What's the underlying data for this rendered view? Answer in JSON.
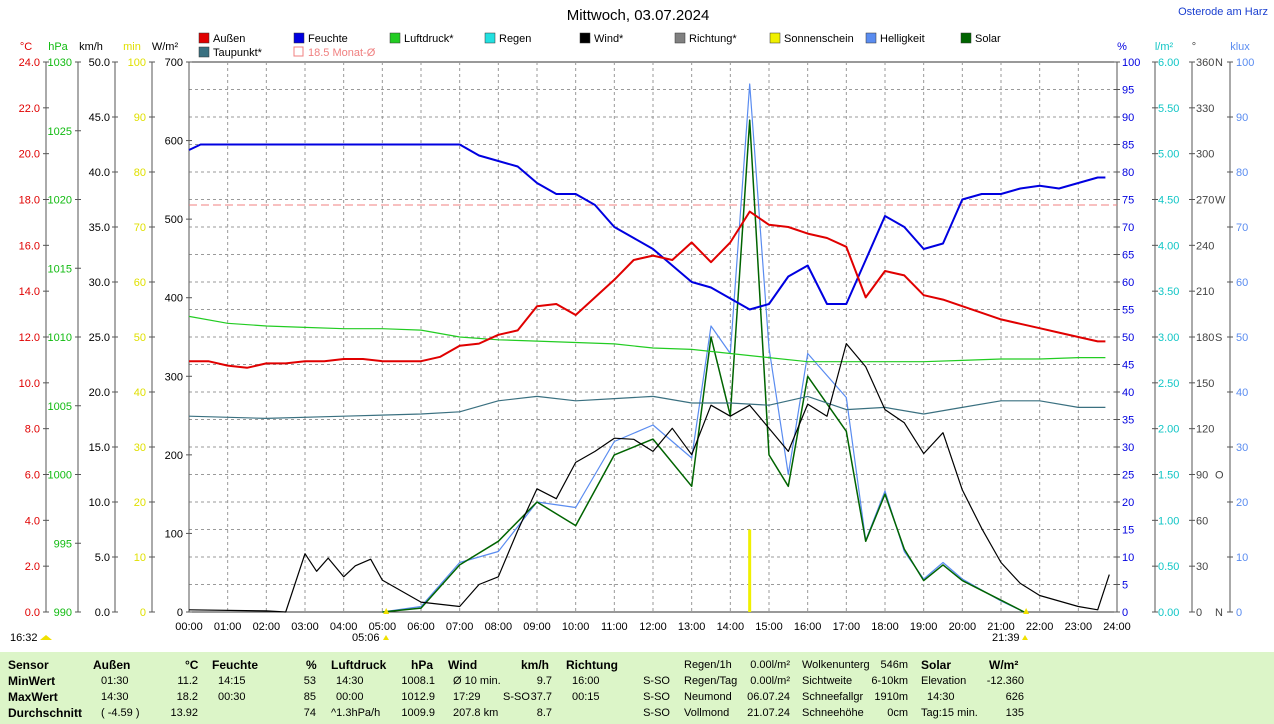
{
  "title": "Mittwoch, 03.07.2024",
  "location": "Osterode am Harz",
  "colors": {
    "aussen": "#e00000",
    "feuchte": "#0000e0",
    "luftdruck": "#22cc22",
    "regen": "#22e0e0",
    "wind": "#000000",
    "richtung": "#808080",
    "sonnenschein": "#f0f000",
    "helligkeit": "#5a8cf0",
    "solar": "#006400",
    "taupunkt": "#3a7080",
    "monatsmittel": "#f08080",
    "stats_bg": "#dcf5c8"
  },
  "legend": [
    "Außen",
    "Feuchte",
    "Luftdruck*",
    "Regen",
    "Wind*",
    "Richtung*",
    "Sonnenschein",
    "Helligkeit",
    "Solar",
    "Taupunkt*",
    "18.5 Monat-Ø"
  ],
  "axes_left": {
    "temp": {
      "unit": "°C",
      "ticks": [
        "0.0",
        "2.0",
        "4.0",
        "6.0",
        "8.0",
        "10.0",
        "12.0",
        "14.0",
        "16.0",
        "18.0",
        "20.0",
        "22.0",
        "24.0"
      ]
    },
    "pressure": {
      "unit": "hPa",
      "ticks": [
        "990",
        "995",
        "1000",
        "1005",
        "1010",
        "1015",
        "1020",
        "1025",
        "1030"
      ]
    },
    "wind": {
      "unit": "km/h",
      "ticks": [
        "0.0",
        "5.0",
        "10.0",
        "15.0",
        "20.0",
        "25.0",
        "30.0",
        "35.0",
        "40.0",
        "45.0",
        "50.0"
      ]
    },
    "sunmin": {
      "unit": "min",
      "ticks": [
        "0",
        "10",
        "20",
        "30",
        "40",
        "50",
        "60",
        "70",
        "80",
        "90",
        "100"
      ]
    },
    "solar": {
      "unit": "W/m²",
      "ticks": [
        "0",
        "100",
        "200",
        "300",
        "400",
        "500",
        "600",
        "700"
      ]
    }
  },
  "axes_right": {
    "humidity": {
      "unit": "%",
      "ticks": [
        "0",
        "5",
        "10",
        "15",
        "20",
        "25",
        "30",
        "35",
        "40",
        "45",
        "50",
        "55",
        "60",
        "65",
        "70",
        "75",
        "80",
        "85",
        "90",
        "95",
        "100"
      ]
    },
    "rain": {
      "unit": "l/m²",
      "ticks": [
        "0.00",
        "0.50",
        "1.00",
        "1.50",
        "2.00",
        "2.50",
        "3.00",
        "3.50",
        "4.00",
        "4.50",
        "5.00",
        "5.50",
        "6.00"
      ]
    },
    "direction": {
      "unit": "°",
      "ticks": [
        "0",
        "30",
        "60",
        "90",
        "120",
        "150",
        "180",
        "210",
        "240",
        "270",
        "300",
        "330",
        "360"
      ],
      "compass": [
        "N",
        "",
        "",
        "O",
        "",
        "",
        "S",
        "",
        "",
        "W",
        "",
        "",
        "N"
      ]
    },
    "lux": {
      "unit": "klux",
      "ticks": [
        "0",
        "10",
        "20",
        "30",
        "40",
        "50",
        "60",
        "70",
        "80",
        "90",
        "100"
      ]
    }
  },
  "x_ticks": [
    "00:00",
    "01:00",
    "02:00",
    "03:00",
    "04:00",
    "05:00",
    "06:00",
    "07:00",
    "08:00",
    "09:00",
    "10:00",
    "11:00",
    "12:00",
    "13:00",
    "14:00",
    "15:00",
    "16:00",
    "17:00",
    "18:00",
    "19:00",
    "20:00",
    "21:00",
    "22:00",
    "23:00",
    "24:00"
  ],
  "annotations": {
    "left_time": "16:32",
    "sunrise": "05:06",
    "sunset": "21:39"
  },
  "chart_data": {
    "type": "line",
    "x_unit": "hours",
    "month_avg_temp": 18.5,
    "series": [
      {
        "name": "Außen",
        "unit": "°C",
        "points": [
          [
            0,
            11.4
          ],
          [
            0.5,
            11.4
          ],
          [
            1,
            11.2
          ],
          [
            1.5,
            11.1
          ],
          [
            2,
            11.3
          ],
          [
            2.5,
            11.3
          ],
          [
            3,
            11.4
          ],
          [
            3.5,
            11.4
          ],
          [
            4,
            11.5
          ],
          [
            4.5,
            11.5
          ],
          [
            5,
            11.4
          ],
          [
            5.5,
            11.4
          ],
          [
            6,
            11.4
          ],
          [
            6.5,
            11.6
          ],
          [
            7,
            12.1
          ],
          [
            7.5,
            12.2
          ],
          [
            8,
            12.6
          ],
          [
            8.5,
            12.8
          ],
          [
            9,
            13.9
          ],
          [
            9.5,
            14
          ],
          [
            10,
            13.5
          ],
          [
            10.5,
            14.3
          ],
          [
            11,
            15.1
          ],
          [
            11.5,
            16
          ],
          [
            12,
            16.2
          ],
          [
            12.5,
            16
          ],
          [
            13,
            16.8
          ],
          [
            13.5,
            15.9
          ],
          [
            14,
            16.8
          ],
          [
            14.5,
            18.2
          ],
          [
            15,
            17.6
          ],
          [
            15.5,
            17.5
          ],
          [
            16,
            17.2
          ],
          [
            16.5,
            17
          ],
          [
            17,
            16.6
          ],
          [
            17.5,
            14.3
          ],
          [
            18,
            15.5
          ],
          [
            18.5,
            15.3
          ],
          [
            19,
            14.4
          ],
          [
            19.5,
            14.2
          ],
          [
            20,
            13.9
          ],
          [
            20.5,
            13.6
          ],
          [
            21,
            13.3
          ],
          [
            21.5,
            13.1
          ],
          [
            22,
            12.9
          ],
          [
            22.5,
            12.7
          ],
          [
            23,
            12.5
          ],
          [
            23.5,
            12.3
          ],
          [
            23.7,
            12.3
          ]
        ]
      },
      {
        "name": "Feuchte",
        "unit": "%",
        "points": [
          [
            0,
            84
          ],
          [
            0.3,
            85
          ],
          [
            1,
            85
          ],
          [
            2,
            85
          ],
          [
            3,
            85
          ],
          [
            4,
            85
          ],
          [
            5,
            85
          ],
          [
            6,
            85
          ],
          [
            7,
            85
          ],
          [
            7.5,
            83
          ],
          [
            8,
            82
          ],
          [
            8.5,
            81
          ],
          [
            9,
            78
          ],
          [
            9.5,
            76
          ],
          [
            10,
            76
          ],
          [
            10.5,
            74
          ],
          [
            11,
            70
          ],
          [
            11.5,
            68
          ],
          [
            12,
            66
          ],
          [
            12.5,
            63
          ],
          [
            13,
            60
          ],
          [
            13.5,
            59
          ],
          [
            14,
            57
          ],
          [
            14.5,
            55
          ],
          [
            15,
            56
          ],
          [
            15.5,
            61
          ],
          [
            16,
            63
          ],
          [
            16.5,
            56
          ],
          [
            17,
            56
          ],
          [
            17.5,
            64
          ],
          [
            18,
            72
          ],
          [
            18.5,
            70
          ],
          [
            19,
            66
          ],
          [
            19.5,
            67
          ],
          [
            20,
            75
          ],
          [
            20.5,
            76
          ],
          [
            21,
            76
          ],
          [
            21.5,
            77
          ],
          [
            22,
            77.5
          ],
          [
            22.5,
            77
          ],
          [
            23,
            78
          ],
          [
            23.5,
            79
          ],
          [
            23.7,
            79
          ]
        ]
      },
      {
        "name": "Luftdruck",
        "unit": "hPa",
        "points": [
          [
            0,
            1011.5
          ],
          [
            1,
            1011.0
          ],
          [
            2,
            1010.8
          ],
          [
            3,
            1010.7
          ],
          [
            4,
            1010.6
          ],
          [
            5,
            1010.6
          ],
          [
            6,
            1010.5
          ],
          [
            7,
            1010.0
          ],
          [
            8,
            1009.8
          ],
          [
            9,
            1009.7
          ],
          [
            10,
            1009.6
          ],
          [
            11,
            1009.5
          ],
          [
            12,
            1009.2
          ],
          [
            13,
            1009.1
          ],
          [
            14,
            1008.8
          ],
          [
            15,
            1008.5
          ],
          [
            16,
            1008.2
          ],
          [
            17,
            1008.2
          ],
          [
            18,
            1008.2
          ],
          [
            19,
            1008.2
          ],
          [
            20,
            1008.3
          ],
          [
            21,
            1008.4
          ],
          [
            22,
            1008.4
          ],
          [
            23,
            1008.5
          ],
          [
            23.7,
            1008.5
          ]
        ]
      },
      {
        "name": "Taupunkt",
        "unit": "°C",
        "points": [
          [
            0,
            8.9
          ],
          [
            2,
            8.8
          ],
          [
            4,
            8.9
          ],
          [
            6,
            9.0
          ],
          [
            7,
            9.1
          ],
          [
            8,
            9.6
          ],
          [
            9,
            9.8
          ],
          [
            10,
            9.6
          ],
          [
            11,
            9.7
          ],
          [
            12,
            9.8
          ],
          [
            13,
            9.5
          ],
          [
            14,
            9.5
          ],
          [
            15,
            9.4
          ],
          [
            16,
            9.8
          ],
          [
            17,
            9.2
          ],
          [
            18,
            9.3
          ],
          [
            19,
            9.0
          ],
          [
            20,
            9.3
          ],
          [
            21,
            9.6
          ],
          [
            22,
            9.6
          ],
          [
            23,
            9.3
          ],
          [
            23.7,
            9.3
          ]
        ]
      },
      {
        "name": "Wind",
        "unit": "km/h",
        "points": [
          [
            0,
            0.2
          ],
          [
            2,
            0.1
          ],
          [
            2.5,
            0
          ],
          [
            3,
            5.3
          ],
          [
            3.3,
            3.7
          ],
          [
            3.6,
            4.9
          ],
          [
            4,
            3.2
          ],
          [
            4.3,
            4.2
          ],
          [
            4.7,
            4.8
          ],
          [
            5,
            2.9
          ],
          [
            6,
            0.9
          ],
          [
            7,
            0.5
          ],
          [
            7.5,
            2.5
          ],
          [
            8,
            3.2
          ],
          [
            8.5,
            7.4
          ],
          [
            9,
            11.2
          ],
          [
            9.5,
            10.3
          ],
          [
            10,
            13.6
          ],
          [
            10.5,
            14.6
          ],
          [
            11,
            15.8
          ],
          [
            11.5,
            15.7
          ],
          [
            12,
            14.6
          ],
          [
            12.5,
            16.7
          ],
          [
            13,
            14.3
          ],
          [
            13.5,
            18.8
          ],
          [
            14,
            17.8
          ],
          [
            14.5,
            18.8
          ],
          [
            15,
            16.7
          ],
          [
            15.5,
            14.6
          ],
          [
            16,
            18.9
          ],
          [
            16.5,
            17.8
          ],
          [
            17,
            24.4
          ],
          [
            17.5,
            22.3
          ],
          [
            18,
            18.4
          ],
          [
            18.5,
            17.2
          ],
          [
            19,
            14.4
          ],
          [
            19.5,
            16.3
          ],
          [
            20,
            11.1
          ],
          [
            20.5,
            7.6
          ],
          [
            21,
            4.5
          ],
          [
            21.5,
            2.6
          ],
          [
            22,
            1.5
          ],
          [
            23,
            0.5
          ],
          [
            23.5,
            0.2
          ],
          [
            23.8,
            3.4
          ]
        ]
      },
      {
        "name": "Solar",
        "unit": "W/m²",
        "points": [
          [
            5,
            0
          ],
          [
            6,
            5
          ],
          [
            7,
            60
          ],
          [
            8,
            90
          ],
          [
            9,
            140
          ],
          [
            10,
            110
          ],
          [
            11,
            200
          ],
          [
            12,
            220
          ],
          [
            13,
            160
          ],
          [
            13.5,
            350
          ],
          [
            14,
            250
          ],
          [
            14.5,
            626
          ],
          [
            15,
            200
          ],
          [
            15.5,
            160
          ],
          [
            16,
            300
          ],
          [
            17,
            230
          ],
          [
            17.5,
            90
          ],
          [
            18,
            150
          ],
          [
            18.5,
            80
          ],
          [
            19,
            40
          ],
          [
            19.5,
            60
          ],
          [
            20,
            40
          ],
          [
            21,
            15
          ],
          [
            21.6,
            0
          ]
        ]
      },
      {
        "name": "Helligkeit",
        "unit": "klux",
        "points": [
          [
            5,
            0
          ],
          [
            6,
            1
          ],
          [
            7,
            9
          ],
          [
            8,
            11
          ],
          [
            9,
            20
          ],
          [
            10,
            19
          ],
          [
            11,
            31
          ],
          [
            12,
            34
          ],
          [
            13,
            28
          ],
          [
            13.5,
            52
          ],
          [
            14,
            47
          ],
          [
            14.5,
            96
          ],
          [
            15,
            48
          ],
          [
            15.5,
            25
          ],
          [
            16,
            47
          ],
          [
            17,
            39
          ],
          [
            17.5,
            13
          ],
          [
            18,
            22
          ],
          [
            18.5,
            11
          ],
          [
            19,
            6
          ],
          [
            19.5,
            9
          ],
          [
            20,
            6
          ],
          [
            21,
            2
          ],
          [
            21.6,
            0
          ]
        ]
      },
      {
        "name": "Sonnenschein",
        "unit": "min",
        "points": [
          [
            14.5,
            15
          ]
        ]
      }
    ]
  },
  "stats": {
    "headers": {
      "sensor": "Sensor",
      "aussen": "Außen",
      "aussen_u": "°C",
      "feuchte": "Feuchte",
      "feuchte_u": "%",
      "luftdruck": "Luftdruck",
      "luftdruck_u": "hPa",
      "wind": "Wind",
      "wind_u": "km/h",
      "richtung": "Richtung",
      "solar": "Solar",
      "solar_u": "W/m²"
    },
    "rows": {
      "min": {
        "label": "MinWert",
        "aussen_t": "01:30",
        "aussen_v": "11.2",
        "feuchte_t": "14:15",
        "feuchte_v": "53",
        "druck_t": "14:30",
        "druck_v": "1008.1",
        "wind_t": "Ø 10 min.",
        "wind_v": "9.7",
        "richtung_t": "16:00",
        "richtung_v": "S-SO"
      },
      "max": {
        "label": "MaxWert",
        "aussen_t": "14:30",
        "aussen_v": "18.2",
        "feuchte_t": "00:30",
        "feuchte_v": "85",
        "druck_t": "00:00",
        "druck_v": "1012.9",
        "wind_t": "17:29",
        "wind_d": "S-SO",
        "wind_v": "37.7",
        "richtung_t": "00:15",
        "richtung_v": "S-SO"
      },
      "avg": {
        "label": "Durchschnitt",
        "aussen_t": "( -4.59 )",
        "aussen_v": "13.92",
        "feuchte_v": "74",
        "druck_t": "^1.3hPa/h",
        "druck_v": "1009.9",
        "wind_t": "207.8 km",
        "wind_v": "8.7",
        "richtung_v": "S-SO"
      }
    },
    "info1": [
      [
        "Regen/1h",
        "0.00l/m²"
      ],
      [
        "Regen/Tag",
        "0.00l/m²"
      ],
      [
        "Neumond",
        "06.07.24"
      ],
      [
        "Vollmond",
        "21.07.24"
      ]
    ],
    "info2": [
      [
        "Wolkenunterg",
        "546m"
      ],
      [
        "Sichtweite",
        "6-10km"
      ],
      [
        "Schneefallgr",
        "1910m"
      ],
      [
        "Schneehöhe",
        "0cm"
      ]
    ],
    "solar_rows": [
      [
        "Elevation",
        "-12.360"
      ],
      [
        "14:30",
        "626"
      ],
      [
        "Tag:15 min.",
        "135"
      ]
    ]
  }
}
